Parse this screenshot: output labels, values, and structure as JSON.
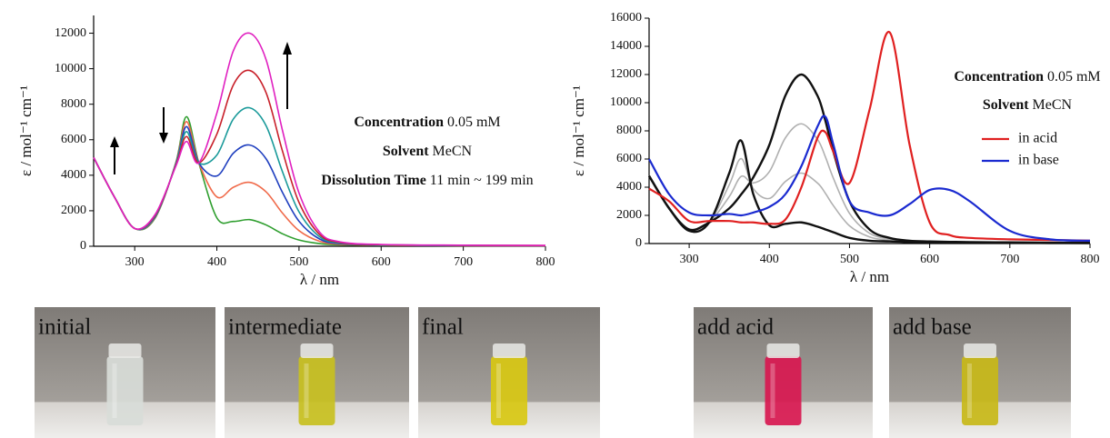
{
  "chart_data": [
    {
      "type": "line",
      "x": [
        250,
        275,
        300,
        325,
        350,
        363,
        378,
        400,
        420,
        440,
        460,
        480,
        500,
        525,
        550,
        600,
        700,
        800
      ],
      "series": [
        {
          "color": "#2e9e2e",
          "values": [
            5000,
            2800,
            1000,
            1600,
            4700,
            7300,
            4700,
            1600,
            1400,
            1500,
            1200,
            700,
            350,
            150,
            80,
            50,
            30,
            20
          ]
        },
        {
          "color": "#f06a4a",
          "values": [
            5000,
            2800,
            1000,
            1640,
            4660,
            7020,
            4700,
            2780,
            3320,
            3600,
            3060,
            1860,
            880,
            280,
            114,
            60,
            36,
            26
          ]
        },
        {
          "color": "#1f3fbf",
          "values": [
            5000,
            2800,
            1000,
            1680,
            4620,
            6740,
            4700,
            3960,
            5240,
            5700,
            4920,
            3020,
            1410,
            410,
            148,
            70,
            42,
            32
          ]
        },
        {
          "color": "#1a9a9a",
          "values": [
            5000,
            2800,
            1000,
            1720,
            4580,
            6460,
            4700,
            5140,
            7160,
            7800,
            6780,
            4180,
            1940,
            540,
            182,
            80,
            48,
            38
          ]
        },
        {
          "color": "#c8202a",
          "values": [
            5000,
            2800,
            1000,
            1760,
            4540,
            6180,
            4700,
            6320,
            9080,
            9900,
            8640,
            5340,
            2470,
            670,
            216,
            90,
            54,
            44
          ]
        },
        {
          "color": "#e020c0",
          "values": [
            5000,
            2800,
            1000,
            1800,
            4500,
            5900,
            4700,
            7500,
            11000,
            12000,
            10500,
            6500,
            3000,
            800,
            250,
            100,
            60,
            50
          ]
        }
      ],
      "xlim": [
        250,
        800
      ],
      "xticks": [
        300,
        400,
        500,
        600,
        700,
        800
      ],
      "ylim": [
        0,
        13000
      ],
      "yticks": [
        0,
        2000,
        4000,
        6000,
        8000,
        10000,
        12000
      ],
      "x_label": "λ / nm",
      "y_label": "ε / mol⁻¹ cm⁻¹",
      "annotations": [
        {
          "bold": "Concentration",
          "text": "0.05 mM"
        },
        {
          "bold": "Solvent",
          "text": "MeCN"
        },
        {
          "bold": "Dissolution Time",
          "text": "11 min ~ 199 min"
        }
      ]
    },
    {
      "type": "line",
      "x": [
        250,
        275,
        300,
        325,
        350,
        365,
        380,
        400,
        420,
        440,
        460,
        470,
        480,
        500,
        525,
        550,
        575,
        600,
        625,
        650,
        700,
        750,
        800
      ],
      "series": [
        {
          "color": "#b0b0b0",
          "values": [
            4800,
            2500,
            930,
            1500,
            4170,
            6030,
            3900,
            3200,
            4400,
            5000,
            4300,
            3560,
            2680,
            1260,
            470,
            230,
            130,
            100,
            85,
            75,
            60,
            47,
            37
          ]
        },
        {
          "color": "#b0b0b0",
          "values": [
            4800,
            2500,
            970,
            1500,
            3330,
            4770,
            4300,
            5100,
            7500,
            8500,
            7400,
            6140,
            4620,
            2140,
            730,
            320,
            170,
            130,
            105,
            85,
            70,
            53,
            43
          ]
        },
        {
          "color": "#111111",
          "values": [
            4800,
            2500,
            900,
            1500,
            5000,
            7300,
            3500,
            1300,
            1400,
            1500,
            1200,
            1000,
            800,
            400,
            200,
            150,
            100,
            80,
            70,
            60,
            50,
            40,
            30
          ]
        },
        {
          "color": "#111111",
          "values": [
            4800,
            2500,
            1000,
            1500,
            2500,
            3500,
            4700,
            7000,
            10500,
            12000,
            10500,
            8700,
            6500,
            3000,
            1000,
            400,
            200,
            150,
            120,
            100,
            80,
            60,
            50
          ]
        },
        {
          "name": "in acid",
          "color": "#e02020",
          "values": [
            3900,
            3000,
            1600,
            1600,
            1600,
            1500,
            1500,
            1400,
            1700,
            4000,
            7500,
            7900,
            6500,
            4300,
            9500,
            15000,
            7000,
            1500,
            600,
            400,
            300,
            250,
            200
          ]
        },
        {
          "name": "in base",
          "color": "#1a2ad0",
          "values": [
            6000,
            3500,
            2200,
            2000,
            2100,
            2000,
            2200,
            2600,
            3500,
            5500,
            8300,
            9000,
            7000,
            3000,
            2200,
            2000,
            2800,
            3800,
            3800,
            3000,
            900,
            300,
            200
          ]
        }
      ],
      "xlim": [
        250,
        800
      ],
      "xticks": [
        300,
        400,
        500,
        600,
        700,
        800
      ],
      "ylim": [
        0,
        16000
      ],
      "yticks": [
        0,
        2000,
        4000,
        6000,
        8000,
        10000,
        12000,
        14000,
        16000
      ],
      "x_label": "λ / nm",
      "y_label": "ε / mol⁻¹ cm⁻¹",
      "legend": "upper right",
      "annotations": [
        {
          "bold": "Concentration",
          "text": "0.05 mM"
        },
        {
          "bold": "Solvent",
          "text": "MeCN"
        }
      ]
    }
  ],
  "photos": [
    {
      "label": "initial",
      "vial_color": "#d8dcd8"
    },
    {
      "label": "intermediate",
      "vial_color": "#c8c020"
    },
    {
      "label": "final",
      "vial_color": "#d8c812"
    },
    {
      "label": "add acid",
      "vial_color": "#d81850"
    },
    {
      "label": "add base",
      "vial_color": "#c8b818"
    }
  ]
}
